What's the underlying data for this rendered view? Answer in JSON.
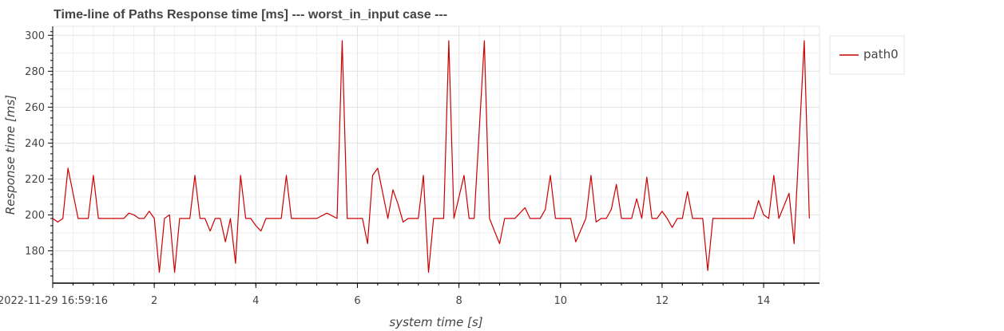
{
  "chart_data": {
    "type": "line",
    "title": "Time-line of Paths Response time [ms] --- worst_in_input case ---",
    "xlabel": "system time [s]",
    "ylabel": "Response time [ms]",
    "x_first_tick_label": "2022-11-29 16:59:16",
    "x_tick_labels": [
      "2",
      "4",
      "6",
      "8",
      "10",
      "12",
      "14"
    ],
    "y_tick_labels": [
      "180",
      "200",
      "220",
      "240",
      "260",
      "280",
      "300"
    ],
    "xlim": [
      0.0,
      15.1
    ],
    "ylim": [
      162,
      305
    ],
    "grid": true,
    "legend_position": "right",
    "series": [
      {
        "name": "path0",
        "color": "#cc0000",
        "x": [
          0.0,
          0.1,
          0.2,
          0.3,
          0.5,
          0.7,
          0.8,
          0.9,
          1.1,
          1.3,
          1.4,
          1.5,
          1.6,
          1.7,
          1.8,
          1.9,
          2.0,
          2.1,
          2.2,
          2.3,
          2.4,
          2.5,
          2.7,
          2.8,
          2.9,
          3.0,
          3.1,
          3.2,
          3.3,
          3.4,
          3.5,
          3.6,
          3.7,
          3.8,
          3.9,
          4.0,
          4.1,
          4.2,
          4.4,
          4.5,
          4.6,
          4.7,
          5.0,
          5.2,
          5.4,
          5.6,
          5.7,
          5.8,
          6.1,
          6.2,
          6.3,
          6.4,
          6.6,
          6.7,
          6.8,
          6.9,
          7.0,
          7.2,
          7.3,
          7.4,
          7.5,
          7.7,
          7.8,
          7.9,
          8.1,
          8.2,
          8.3,
          8.5,
          8.6,
          8.8,
          8.9,
          9.1,
          9.3,
          9.4,
          9.6,
          9.7,
          9.8,
          9.9,
          10.0,
          10.1,
          10.2,
          10.3,
          10.5,
          10.6,
          10.7,
          10.8,
          10.9,
          11.0,
          11.1,
          11.2,
          11.4,
          11.5,
          11.6,
          11.7,
          11.8,
          11.9,
          12.0,
          12.1,
          12.2,
          12.3,
          12.4,
          12.5,
          12.6,
          12.8,
          12.9,
          13.0,
          13.1,
          13.5,
          13.7,
          13.8,
          13.9,
          14.0,
          14.1,
          14.2,
          14.3,
          14.5,
          14.6,
          14.8,
          14.9
        ],
        "y": [
          198,
          196,
          198,
          226,
          198,
          198,
          222,
          198,
          198,
          198,
          198,
          201,
          200,
          198,
          198,
          202,
          198,
          168,
          198,
          200,
          168,
          198,
          198,
          222,
          198,
          198,
          191,
          198,
          198,
          185,
          198,
          173,
          222,
          198,
          198,
          194,
          191,
          198,
          198,
          198,
          222,
          198,
          198,
          198,
          201,
          198,
          297,
          198,
          198,
          184,
          222,
          226,
          198,
          214,
          206,
          196,
          198,
          198,
          222,
          168,
          198,
          198,
          297,
          198,
          222,
          198,
          198,
          297,
          198,
          184,
          198,
          198,
          204,
          198,
          198,
          203,
          222,
          198,
          198,
          198,
          198,
          185,
          198,
          222,
          196,
          198,
          198,
          203,
          217,
          198,
          198,
          209,
          198,
          221,
          198,
          198,
          202,
          198,
          193,
          198,
          198,
          213,
          198,
          198,
          169,
          198,
          198,
          198,
          198,
          198,
          208,
          200,
          198,
          222,
          198,
          212,
          184,
          297,
          198
        ]
      }
    ]
  }
}
